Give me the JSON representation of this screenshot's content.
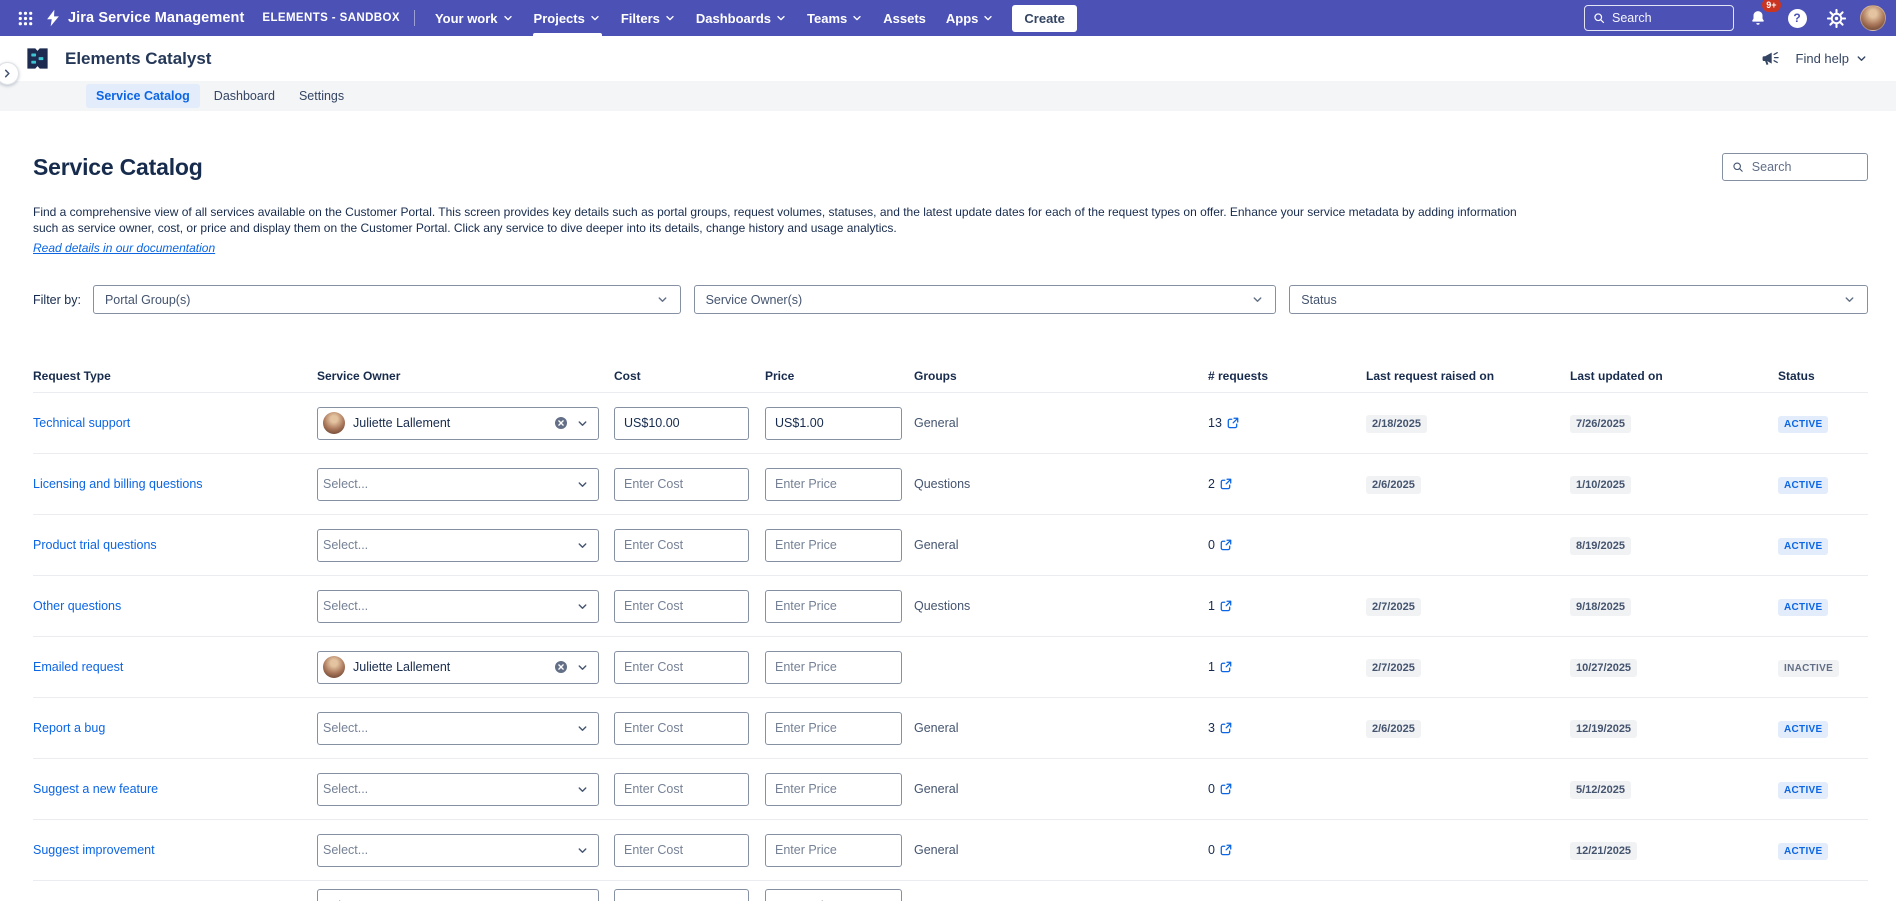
{
  "colors": {
    "nav_bg": "#4C51B5",
    "link_blue": "#0C66E4",
    "notification_red": "#CA3521",
    "badge_active_bg": "#E2ECFB",
    "badge_active_text": "#0C66E4",
    "badge_inactive_bg": "#F1F2F4",
    "badge_inactive_text": "#626F86"
  },
  "topnav": {
    "product_name": "Jira Service Management",
    "project_label": "ELEMENTS - SANDBOX",
    "menu_items": [
      {
        "label": "Your work",
        "chevron": true,
        "active": false
      },
      {
        "label": "Projects",
        "chevron": true,
        "active": true
      },
      {
        "label": "Filters",
        "chevron": true,
        "active": false
      },
      {
        "label": "Dashboards",
        "chevron": true,
        "active": false
      },
      {
        "label": "Teams",
        "chevron": true,
        "active": false
      },
      {
        "label": "Assets",
        "chevron": false,
        "active": false
      },
      {
        "label": "Apps",
        "chevron": true,
        "active": false
      }
    ],
    "create_button": "Create",
    "search_placeholder": "Search",
    "notification_count": "9+"
  },
  "app_header": {
    "app_title": "Elements Catalyst",
    "find_help_label": "Find help"
  },
  "tabs": [
    {
      "label": "Service Catalog",
      "active": true
    },
    {
      "label": "Dashboard",
      "active": false
    },
    {
      "label": "Settings",
      "active": false
    }
  ],
  "page": {
    "title": "Service Catalog",
    "search_placeholder": "Search",
    "description_line1": "Find a comprehensive view of all services available on the Customer Portal. This screen provides key details such as portal groups, request volumes, statuses, and the latest update dates for each of the request types on offer. Enhance your service metadata by adding information",
    "description_line2": "such as service owner, cost, or price and display them on the Customer Portal. Click any service to dive deeper into its details, change history and usage analytics.",
    "documentation_link": "Read details in our documentation"
  },
  "filters": {
    "label": "Filter by:",
    "portal_groups": "Portal Group(s)",
    "service_owners": "Service Owner(s)",
    "status": "Status"
  },
  "table": {
    "headers": [
      "Request Type",
      "Service Owner",
      "Cost",
      "Price",
      "Groups",
      "# requests",
      "Last request raised on",
      "Last updated on",
      "Status"
    ],
    "placeholders": {
      "owner": "Select...",
      "cost": "Enter Cost",
      "price": "Enter Price"
    },
    "rows": [
      {
        "request_type": "Technical support",
        "owner": "Juliette Lallement",
        "cost": "US$10.00",
        "price": "US$1.00",
        "groups": "General",
        "requests": "13",
        "last_request_raised_on": "2/18/2025",
        "last_updated_on": "7/26/2025",
        "status": "ACTIVE"
      },
      {
        "request_type": "Licensing and billing questions",
        "owner": null,
        "cost": "",
        "price": "",
        "groups": "Questions",
        "requests": "2",
        "last_request_raised_on": "2/6/2025",
        "last_updated_on": "1/10/2025",
        "status": "ACTIVE"
      },
      {
        "request_type": "Product trial questions",
        "owner": null,
        "cost": "",
        "price": "",
        "groups": "General",
        "requests": "0",
        "last_request_raised_on": "",
        "last_updated_on": "8/19/2025",
        "status": "ACTIVE"
      },
      {
        "request_type": "Other questions",
        "owner": null,
        "cost": "",
        "price": "",
        "groups": "Questions",
        "requests": "1",
        "last_request_raised_on": "2/7/2025",
        "last_updated_on": "9/18/2025",
        "status": "ACTIVE"
      },
      {
        "request_type": "Emailed request",
        "owner": "Juliette Lallement",
        "cost": "",
        "price": "",
        "groups": "",
        "requests": "1",
        "last_request_raised_on": "2/7/2025",
        "last_updated_on": "10/27/2025",
        "status": "INACTIVE"
      },
      {
        "request_type": "Report a bug",
        "owner": null,
        "cost": "",
        "price": "",
        "groups": "General",
        "requests": "3",
        "last_request_raised_on": "2/6/2025",
        "last_updated_on": "12/19/2025",
        "status": "ACTIVE"
      },
      {
        "request_type": "Suggest a new feature",
        "owner": null,
        "cost": "",
        "price": "",
        "groups": "General",
        "requests": "0",
        "last_request_raised_on": "",
        "last_updated_on": "5/12/2025",
        "status": "ACTIVE"
      },
      {
        "request_type": "Suggest improvement",
        "owner": null,
        "cost": "",
        "price": "",
        "groups": "General",
        "requests": "0",
        "last_request_raised_on": "",
        "last_updated_on": "12/21/2025",
        "status": "ACTIVE"
      }
    ],
    "partial_next_row_visible": true
  }
}
